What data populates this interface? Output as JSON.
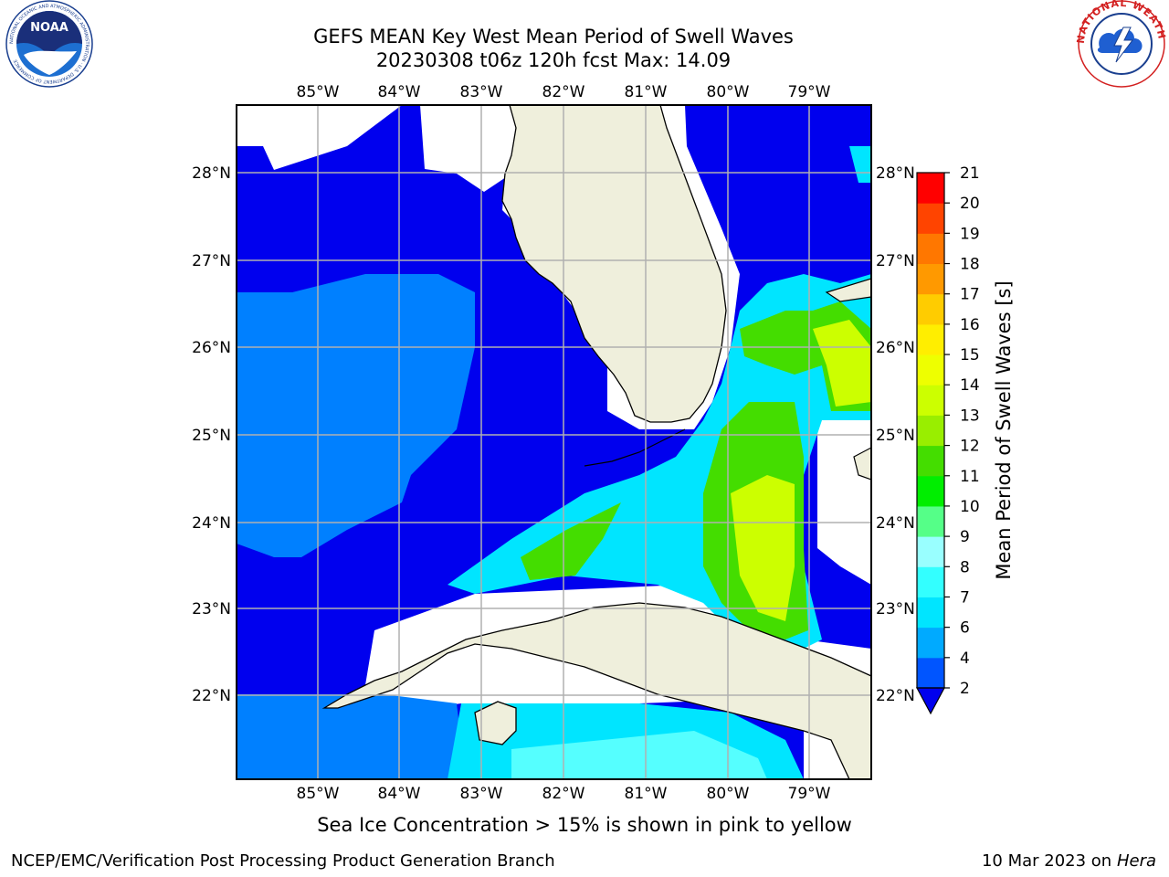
{
  "title": {
    "line1": "GEFS MEAN Key West Mean Period of Swell Waves",
    "line2": "20230308 t06z 120h fcst   Max: 14.09"
  },
  "map": {
    "lon_labels": [
      "85°W",
      "84°W",
      "83°W",
      "82°W",
      "81°W",
      "80°W",
      "79°W"
    ],
    "lat_labels": [
      "28°N",
      "27°N",
      "26°N",
      "25°N",
      "24°N",
      "23°N",
      "22°N"
    ],
    "lon_range": [
      -86.0,
      -78.3
    ],
    "lat_range": [
      21.05,
      28.75
    ]
  },
  "colorbar": {
    "title": "Mean Period of Swell Waves [s]",
    "ticks": [
      "2",
      "4",
      "6",
      "7",
      "8",
      "9",
      "10",
      "11",
      "12",
      "13",
      "14",
      "15",
      "16",
      "17",
      "18",
      "19",
      "20",
      "21"
    ],
    "colors": [
      "#0055ff",
      "#00aaff",
      "#00e5ff",
      "#33ffff",
      "#99ffff",
      "#55ff88",
      "#00ee00",
      "#44dd00",
      "#99ee00",
      "#ccff00",
      "#eeff00",
      "#ffee00",
      "#ffcc00",
      "#ff9900",
      "#ff7700",
      "#ff4400",
      "#ff0000"
    ],
    "under_color": "#0000ee"
  },
  "footer": {
    "note": "Sea Ice Concentration > 15% is shown in pink to yellow",
    "credit_left": "NCEP/EMC/Verification Post Processing Product Generation Branch",
    "credit_date": "10 Mar 2023 on",
    "credit_machine": "Hera"
  },
  "logos": {
    "left": "NOAA",
    "right_ring": "NATIONAL WEATHER SERVICE"
  }
}
